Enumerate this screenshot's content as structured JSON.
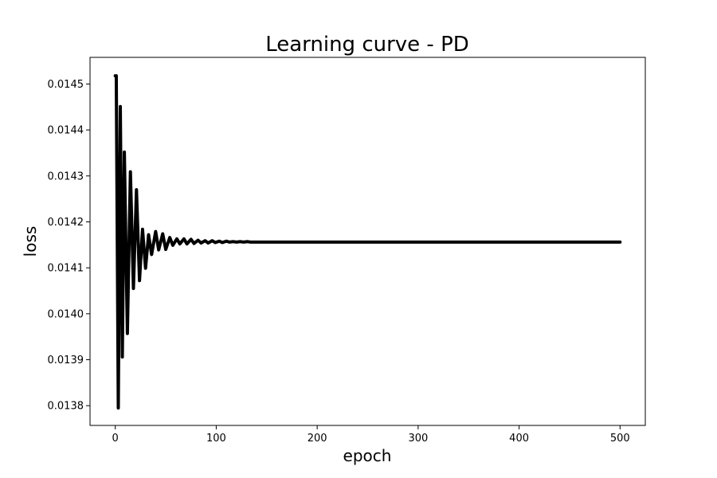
{
  "chart_data": {
    "type": "line",
    "title": "Learning curve - PD",
    "xlabel": "epoch",
    "ylabel": "loss",
    "xlim": [
      -25,
      525
    ],
    "ylim": [
      0.013757,
      0.014558
    ],
    "grid": false,
    "legend": null,
    "x_ticks": [
      {
        "value": 0,
        "label": "0"
      },
      {
        "value": 100,
        "label": "100"
      },
      {
        "value": 200,
        "label": "200"
      },
      {
        "value": 300,
        "label": "300"
      },
      {
        "value": 400,
        "label": "400"
      },
      {
        "value": 500,
        "label": "500"
      }
    ],
    "y_ticks": [
      {
        "value": 0.0138,
        "label": "0.0138"
      },
      {
        "value": 0.0139,
        "label": "0.0139"
      },
      {
        "value": 0.014,
        "label": "0.0140"
      },
      {
        "value": 0.0141,
        "label": "0.0141"
      },
      {
        "value": 0.0142,
        "label": "0.0142"
      },
      {
        "value": 0.0143,
        "label": "0.0143"
      },
      {
        "value": 0.0144,
        "label": "0.0144"
      },
      {
        "value": 0.0145,
        "label": "0.0145"
      }
    ],
    "series": [
      {
        "color": "#000000",
        "x": [
          0,
          1,
          3,
          5,
          7,
          9,
          12,
          15,
          18,
          21,
          24,
          27,
          30,
          33,
          36,
          40,
          43,
          47,
          50,
          54,
          57,
          61,
          64,
          68,
          71,
          75,
          78,
          82,
          85,
          89,
          92,
          96,
          99,
          103,
          106,
          110,
          113,
          117,
          120,
          124,
          127,
          131,
          134,
          140,
          150,
          200,
          300,
          400,
          500
        ],
        "y": [
          0.014518,
          0.014518,
          0.013795,
          0.014451,
          0.013906,
          0.014352,
          0.013957,
          0.014309,
          0.014055,
          0.01427,
          0.014072,
          0.014184,
          0.014099,
          0.014172,
          0.014129,
          0.014179,
          0.014139,
          0.014174,
          0.01414,
          0.014166,
          0.014149,
          0.014163,
          0.014152,
          0.014163,
          0.014152,
          0.014162,
          0.014153,
          0.01416,
          0.014154,
          0.014159,
          0.014154,
          0.014159,
          0.014155,
          0.014158,
          0.014155,
          0.014158,
          0.014156,
          0.014157,
          0.014156,
          0.014157,
          0.014156,
          0.014157,
          0.014156,
          0.014156,
          0.014156,
          0.014156,
          0.014156,
          0.014156,
          0.014156
        ]
      }
    ]
  }
}
